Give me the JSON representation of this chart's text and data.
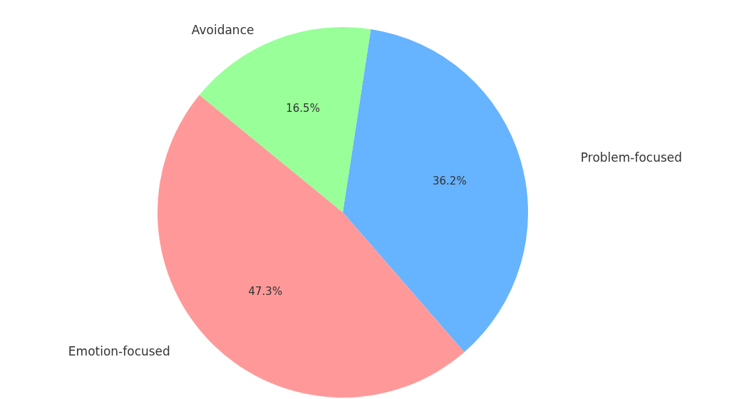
{
  "chart_data": {
    "type": "pie",
    "categories": [
      "Problem-focused",
      "Emotion-focused",
      "Avoidance"
    ],
    "values": [
      36.2,
      47.3,
      16.5
    ],
    "colors": [
      "#66b3ff",
      "#ff9999",
      "#99ff99"
    ],
    "value_labels": [
      "36.2%",
      "47.3%",
      "16.5%"
    ]
  }
}
